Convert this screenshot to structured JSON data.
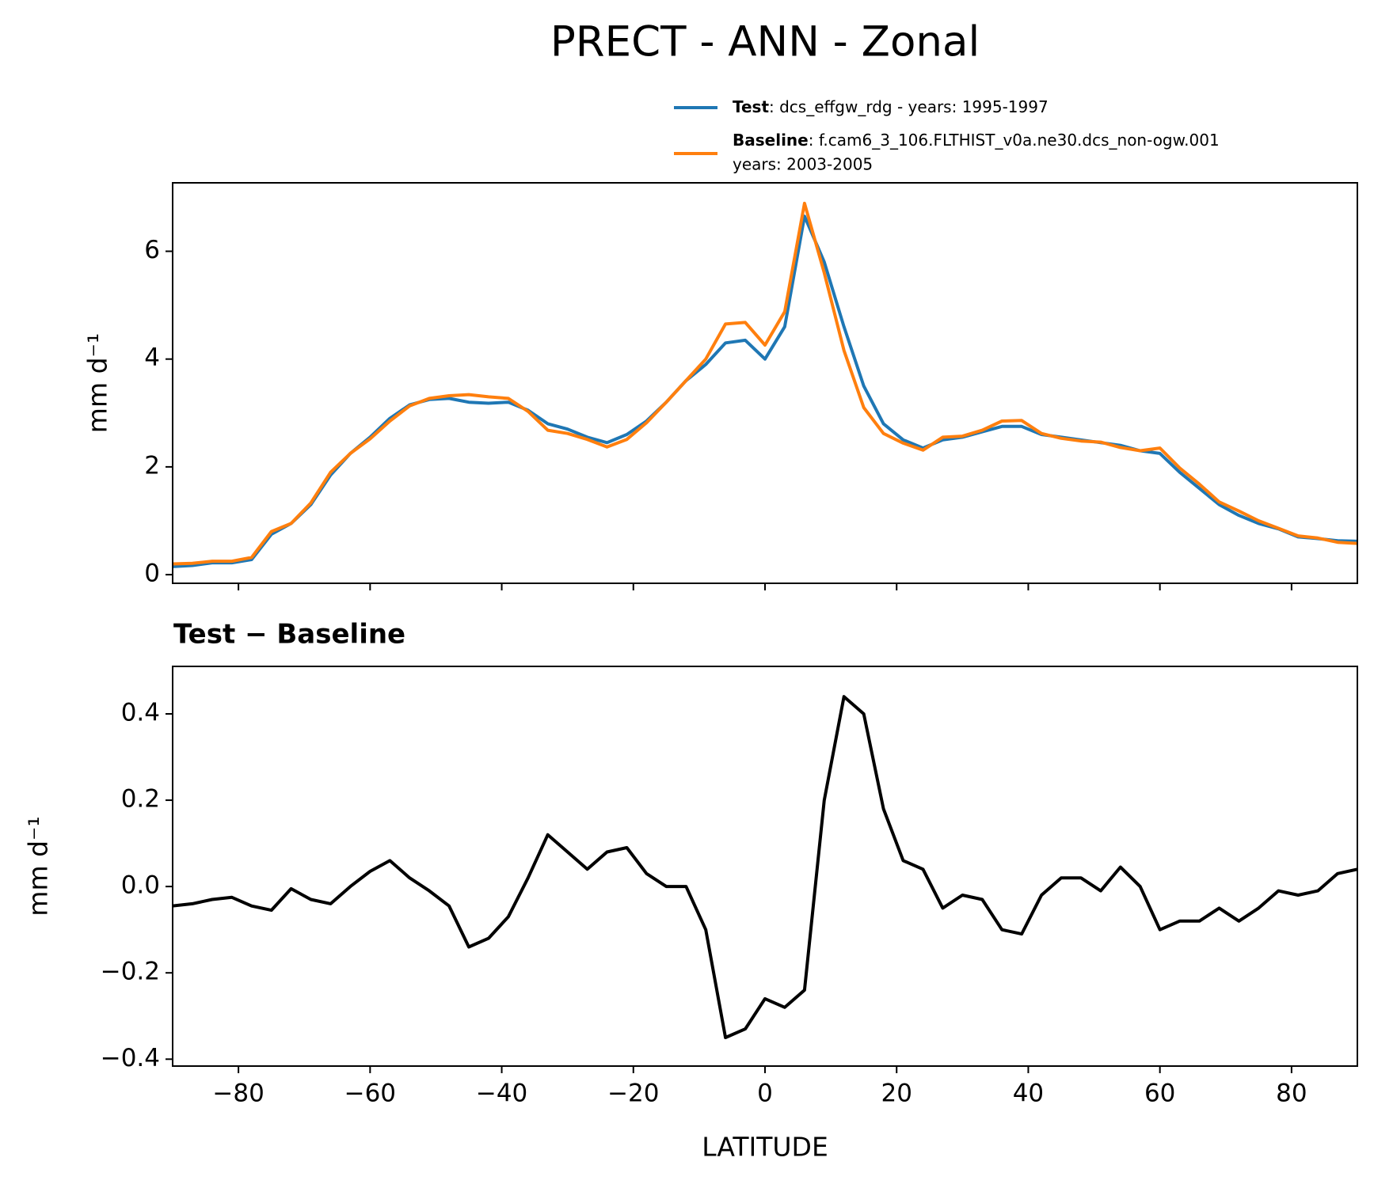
{
  "title": "PRECT - ANN - Zonal",
  "chart_data": [
    {
      "type": "line",
      "x": [
        -90,
        -87,
        -84,
        -81,
        -78,
        -75,
        -72,
        -69,
        -66,
        -63,
        -60,
        -57,
        -54,
        -51,
        -48,
        -45,
        -42,
        -39,
        -36,
        -33,
        -30,
        -27,
        -24,
        -21,
        -18,
        -15,
        -12,
        -9,
        -6,
        -3,
        0,
        3,
        6,
        9,
        12,
        15,
        18,
        21,
        24,
        27,
        30,
        33,
        36,
        39,
        42,
        45,
        48,
        51,
        54,
        57,
        60,
        63,
        66,
        69,
        72,
        75,
        78,
        81,
        84,
        87,
        90
      ],
      "series": [
        {
          "name": "Test",
          "label": [
            ": dcs_effgw_rdg - years: 1995-1997"
          ],
          "color": "#1f77b4",
          "values": [
            0.15,
            0.17,
            0.22,
            0.22,
            0.28,
            0.75,
            0.95,
            1.3,
            1.85,
            2.25,
            2.55,
            2.9,
            3.15,
            3.25,
            3.27,
            3.2,
            3.18,
            3.2,
            3.05,
            2.8,
            2.7,
            2.55,
            2.45,
            2.6,
            2.85,
            3.2,
            3.6,
            3.9,
            4.3,
            4.35,
            4.0,
            4.6,
            6.65,
            5.8,
            4.6,
            3.5,
            2.8,
            2.5,
            2.35,
            2.5,
            2.55,
            2.65,
            2.75,
            2.75,
            2.6,
            2.55,
            2.5,
            2.45,
            2.4,
            2.3,
            2.25,
            1.9,
            1.6,
            1.3,
            1.1,
            0.95,
            0.85,
            0.7,
            0.67,
            0.63,
            0.62
          ]
        },
        {
          "name": "Baseline",
          "label": [
            ": f.cam6_3_106.FLTHIST_v0a.ne30.dcs_non-ogw.001",
            "years: 2003-2005"
          ],
          "color": "#ff7f0e",
          "values": [
            0.2,
            0.21,
            0.25,
            0.25,
            0.32,
            0.8,
            0.95,
            1.33,
            1.9,
            2.25,
            2.52,
            2.85,
            3.13,
            3.27,
            3.32,
            3.34,
            3.3,
            3.27,
            3.03,
            2.68,
            2.62,
            2.51,
            2.37,
            2.51,
            2.82,
            3.2,
            3.6,
            4.0,
            4.65,
            4.68,
            4.26,
            4.88,
            6.89,
            5.6,
            4.16,
            3.1,
            2.62,
            2.44,
            2.31,
            2.55,
            2.57,
            2.68,
            2.85,
            2.86,
            2.62,
            2.53,
            2.48,
            2.46,
            2.36,
            2.3,
            2.35,
            1.98,
            1.68,
            1.35,
            1.18,
            1.0,
            0.86,
            0.72,
            0.68,
            0.6,
            0.58
          ]
        }
      ],
      "ylabel": "mm d⁻¹",
      "xlim": [
        -90,
        90
      ],
      "ylim": [
        -0.16,
        7.27
      ],
      "yticks": [
        0,
        2,
        4,
        6
      ]
    },
    {
      "type": "line",
      "title": "Test − Baseline",
      "x": [
        -90,
        -87,
        -84,
        -81,
        -78,
        -75,
        -72,
        -69,
        -66,
        -63,
        -60,
        -57,
        -54,
        -51,
        -48,
        -45,
        -42,
        -39,
        -36,
        -33,
        -30,
        -27,
        -24,
        -21,
        -18,
        -15,
        -12,
        -9,
        -6,
        -3,
        0,
        3,
        6,
        9,
        12,
        15,
        18,
        21,
        24,
        27,
        30,
        33,
        36,
        39,
        42,
        45,
        48,
        51,
        54,
        57,
        60,
        63,
        66,
        69,
        72,
        75,
        78,
        81,
        84,
        87,
        90
      ],
      "series": [
        {
          "color": "#000000",
          "values": [
            -0.045,
            -0.04,
            -0.03,
            -0.025,
            -0.045,
            -0.055,
            -0.005,
            -0.03,
            -0.04,
            0.0,
            0.035,
            0.06,
            0.02,
            -0.01,
            -0.045,
            -0.14,
            -0.12,
            -0.07,
            0.02,
            0.12,
            0.08,
            0.04,
            0.08,
            0.09,
            0.03,
            0.0,
            0.0,
            -0.1,
            -0.35,
            -0.33,
            -0.26,
            -0.28,
            -0.24,
            0.2,
            0.44,
            0.4,
            0.18,
            0.06,
            0.04,
            -0.05,
            -0.02,
            -0.03,
            -0.1,
            -0.11,
            -0.02,
            0.02,
            0.02,
            -0.01,
            0.045,
            0.0,
            -0.1,
            -0.08,
            -0.08,
            -0.05,
            -0.08,
            -0.05,
            -0.01,
            -0.02,
            -0.01,
            0.03,
            0.04
          ]
        }
      ],
      "ylabel": "mm d⁻¹",
      "xlabel": "LATITUDE",
      "xlim": [
        -90,
        90
      ],
      "ylim": [
        -0.416,
        0.51
      ],
      "yticks": [
        {
          "value": -0.4,
          "label": "−0.4"
        },
        {
          "value": -0.2,
          "label": "−0.2"
        },
        {
          "value": 0,
          "label": "0.0"
        },
        0.2,
        0.4
      ],
      "xticks": [
        {
          "value": -80,
          "label": "−80"
        },
        {
          "value": -60,
          "label": "−60"
        },
        {
          "value": -40,
          "label": "−40"
        },
        {
          "value": -20,
          "label": "−20"
        },
        0,
        20,
        40,
        60,
        80
      ]
    }
  ]
}
